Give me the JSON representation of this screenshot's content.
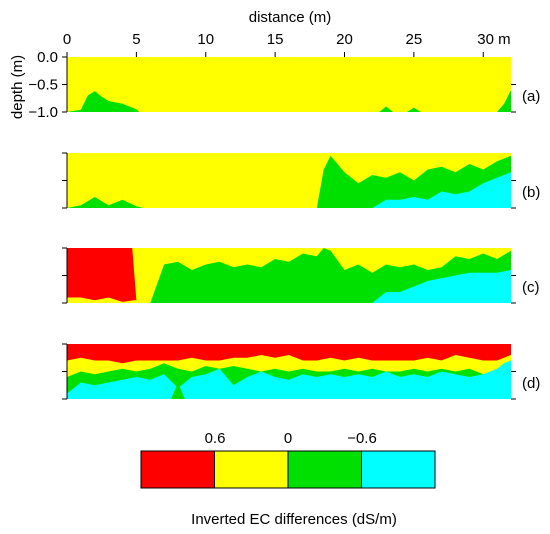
{
  "chart_data": {
    "type": "area",
    "subtype": "filled-contour-cross-sections",
    "xlabel": "distance (m)",
    "ylabel": "depth (m)",
    "x_tick_labels": [
      "0",
      "5",
      "10",
      "15",
      "20",
      "25",
      "30 m"
    ],
    "x_ticks": [
      0,
      5,
      10,
      15,
      20,
      25,
      30
    ],
    "xlim": [
      0,
      32
    ],
    "y_tick_labels": [
      "0.0",
      "−0.5",
      "−1.0"
    ],
    "y_ticks": [
      0,
      -0.5,
      -1.0
    ],
    "ylim": [
      -1.0,
      0.0
    ],
    "legend": {
      "title": "Inverted EC differences (dS/m)",
      "tick_labels": [
        "0.6",
        "0",
        "−0.6"
      ],
      "classes": [
        {
          "range": "> 0.6",
          "color": "#ff0000"
        },
        {
          "range": "0 to 0.6",
          "color": "#ffff00"
        },
        {
          "range": "−0.6 to 0",
          "color": "#00e000"
        },
        {
          "range": "< −0.6",
          "color": "#00ffff"
        }
      ],
      "placement": "bottom-center"
    },
    "panels": [
      {
        "label": "(a)",
        "layers": [
          {
            "color": "#ffff00",
            "x": [
              0,
              32
            ],
            "top": [
              0.0,
              0.0
            ]
          },
          {
            "color": "#00e000",
            "x": [
              0,
              1,
              1.5,
              2,
              2.5,
              3,
              4,
              5,
              5.2,
              32
            ],
            "top": [
              -1.0,
              -0.96,
              -0.7,
              -0.62,
              -0.72,
              -0.8,
              -0.85,
              -0.95,
              -1.0,
              -1.0
            ]
          },
          {
            "color": "#00e000",
            "x": [
              22.5,
              23,
              23.5
            ],
            "top": [
              -1.0,
              -0.9,
              -1.0
            ]
          },
          {
            "color": "#00e000",
            "x": [
              24.5,
              25,
              25.5
            ],
            "top": [
              -1.0,
              -0.92,
              -1.0
            ]
          },
          {
            "color": "#00e000",
            "x": [
              31,
              31.5,
              32,
              32
            ],
            "top": [
              -1.0,
              -0.85,
              -0.6,
              -1.0
            ]
          }
        ]
      },
      {
        "label": "(b)",
        "layers": [
          {
            "color": "#ffff00",
            "x": [
              0,
              32
            ],
            "top": [
              0.0,
              0.0
            ]
          },
          {
            "color": "#00e000",
            "x": [
              0,
              1,
              2,
              3,
              4,
              5,
              5.5,
              6,
              14,
              18,
              18.5,
              19,
              20,
              21,
              22,
              23,
              24,
              25,
              26,
              27,
              28,
              29,
              30,
              31,
              32
            ],
            "top": [
              -1.0,
              -0.95,
              -0.8,
              -0.95,
              -0.85,
              -0.97,
              -1.0,
              -1.0,
              -1.0,
              -1.0,
              -0.3,
              -0.05,
              -0.35,
              -0.55,
              -0.4,
              -0.45,
              -0.35,
              -0.5,
              -0.3,
              -0.25,
              -0.35,
              -0.2,
              -0.3,
              -0.15,
              -0.05
            ]
          },
          {
            "color": "#00ffff",
            "x": [
              0,
              22,
              23,
              24,
              25,
              26,
              27,
              28,
              29,
              30,
              31,
              32
            ],
            "top": [
              -1.0,
              -1.0,
              -0.85,
              -0.85,
              -0.8,
              -0.85,
              -0.7,
              -0.75,
              -0.7,
              -0.55,
              -0.45,
              -0.35
            ]
          }
        ]
      },
      {
        "label": "(c)",
        "layers": [
          {
            "color": "#ffff00",
            "x": [
              0,
              32
            ],
            "top": [
              0.0,
              0.0
            ]
          },
          {
            "color": "#ff0000",
            "x": [
              0,
              4.7,
              5,
              4.8,
              4,
              3,
              2,
              1,
              0
            ],
            "top": [
              0.0,
              0.0,
              -0.95,
              -0.95,
              -0.98,
              -0.9,
              -0.95,
              -0.9,
              -0.9
            ]
          },
          {
            "color": "#00e000",
            "x": [
              0,
              6,
              7,
              8,
              9,
              10,
              11,
              12,
              13,
              14,
              15,
              16,
              17,
              18,
              18.5,
              19,
              20,
              21,
              22,
              23,
              24,
              25,
              26,
              27,
              28,
              29,
              30,
              31,
              32
            ],
            "top": [
              -1.0,
              -1.0,
              -0.3,
              -0.25,
              -0.4,
              -0.3,
              -0.25,
              -0.35,
              -0.3,
              -0.35,
              -0.2,
              -0.25,
              -0.1,
              -0.15,
              0.0,
              -0.05,
              -0.4,
              -0.3,
              -0.45,
              -0.3,
              -0.35,
              -0.3,
              -0.4,
              -0.35,
              -0.15,
              -0.2,
              -0.1,
              -0.2,
              -0.05
            ]
          },
          {
            "color": "#00ffff",
            "x": [
              0,
              22,
              22.5,
              23,
              24,
              25,
              26,
              27,
              28,
              29,
              30,
              31,
              32
            ],
            "top": [
              -1.0,
              -1.0,
              -0.9,
              -0.8,
              -0.8,
              -0.7,
              -0.6,
              -0.55,
              -0.5,
              -0.45,
              -0.45,
              -0.45,
              -0.4
            ]
          }
        ]
      },
      {
        "label": "(d)",
        "layers": [
          {
            "color": "#ffff00",
            "x": [
              0,
              32
            ],
            "top": [
              0.0,
              0.0
            ]
          },
          {
            "color": "#ff0000",
            "x": [
              0,
              32,
              32,
              31,
              30,
              29,
              28,
              27,
              26,
              25,
              24,
              23,
              22,
              21,
              20,
              19,
              18,
              17,
              16,
              15,
              14,
              13,
              12,
              11,
              10,
              9,
              8,
              7,
              6,
              5,
              4,
              3,
              2,
              1,
              0
            ],
            "top": [
              0.0,
              0.0,
              -0.2,
              -0.3,
              -0.3,
              -0.25,
              -0.2,
              -0.3,
              -0.25,
              -0.3,
              -0.3,
              -0.3,
              -0.3,
              -0.25,
              -0.3,
              -0.25,
              -0.3,
              -0.3,
              -0.2,
              -0.25,
              -0.2,
              -0.25,
              -0.25,
              -0.3,
              -0.3,
              -0.25,
              -0.3,
              -0.3,
              -0.3,
              -0.3,
              -0.35,
              -0.3,
              -0.3,
              -0.25,
              -0.3
            ]
          },
          {
            "color": "#00e000",
            "x": [
              0,
              1,
              2,
              3,
              4,
              5,
              6,
              7,
              8,
              9,
              10,
              11,
              12,
              13,
              14,
              15,
              16,
              17,
              18,
              19,
              20,
              21,
              22,
              23,
              24,
              25,
              26,
              27,
              28,
              29,
              30,
              31,
              32
            ],
            "top": [
              -0.6,
              -0.5,
              -0.55,
              -0.5,
              -0.45,
              -0.5,
              -0.45,
              -0.35,
              -0.45,
              -0.5,
              -0.4,
              -0.45,
              -0.4,
              -0.45,
              -0.5,
              -0.45,
              -0.5,
              -0.45,
              -0.5,
              -0.5,
              -0.45,
              -0.5,
              -0.45,
              -0.5,
              -0.5,
              -0.45,
              -0.5,
              -0.45,
              -0.5,
              -0.45,
              -0.55,
              -0.5,
              -0.5
            ]
          },
          {
            "color": "#00ffff",
            "x": [
              0,
              1,
              2,
              3,
              4,
              5,
              6,
              7,
              8,
              9,
              10,
              11,
              12,
              13,
              14,
              15,
              16,
              17,
              18,
              19,
              20,
              21,
              22,
              23,
              24,
              25,
              26,
              27,
              28,
              29,
              30,
              31,
              31.5,
              32
            ],
            "top": [
              -0.9,
              -0.7,
              -0.75,
              -0.7,
              -0.65,
              -0.6,
              -0.65,
              -0.55,
              -0.8,
              -0.6,
              -0.55,
              -0.45,
              -0.75,
              -0.6,
              -0.5,
              -0.6,
              -0.65,
              -0.55,
              -0.6,
              -0.55,
              -0.6,
              -0.55,
              -0.6,
              -0.5,
              -0.6,
              -0.55,
              -0.6,
              -0.5,
              -0.55,
              -0.6,
              -0.55,
              -0.45,
              -0.35,
              -0.3
            ]
          },
          {
            "color": "#00e000",
            "x": [
              7.5,
              8,
              8.5
            ],
            "top": [
              -1.0,
              -0.7,
              -1.0
            ]
          }
        ]
      }
    ]
  }
}
